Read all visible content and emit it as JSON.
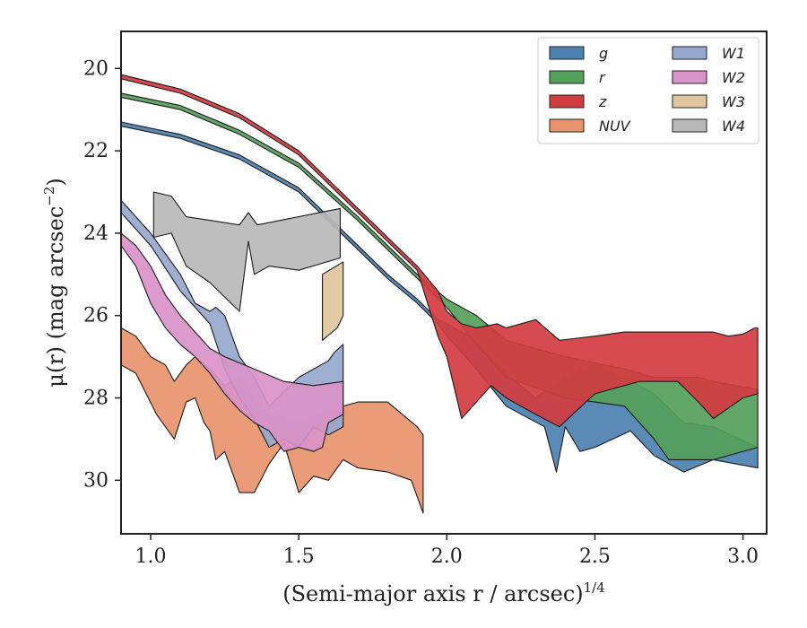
{
  "chart_data": {
    "type": "area",
    "xlabel": "(Semi-major axis r / arcsec)",
    "xlabel_sup": "1/4",
    "ylabel": "μ(r) (mag arcsec",
    "ylabel_sup": "−2",
    "ylabel_tail": ")",
    "xlim": [
      0.9,
      3.08
    ],
    "ylim": [
      31.3,
      19.1
    ],
    "xticks": [
      1.0,
      1.5,
      2.0,
      2.5,
      3.0
    ],
    "xtick_labels": [
      "1.0",
      "1.5",
      "2.0",
      "2.5",
      "3.0"
    ],
    "yticks": [
      20,
      22,
      24,
      26,
      28,
      30
    ],
    "ytick_labels": [
      "20",
      "22",
      "24",
      "26",
      "28",
      "30"
    ],
    "grid": false,
    "legend_position": "top-right",
    "series": [
      {
        "name": "g",
        "color": "#4c81b0",
        "upper": [
          [
            0.9,
            21.3
          ],
          [
            1.1,
            21.6
          ],
          [
            1.3,
            22.1
          ],
          [
            1.5,
            22.9
          ],
          [
            1.7,
            24.3
          ],
          [
            1.8,
            25.0
          ],
          [
            1.9,
            25.6
          ],
          [
            1.97,
            26.1
          ],
          [
            2.0,
            26.2
          ],
          [
            2.05,
            26.4
          ],
          [
            2.1,
            26.6
          ],
          [
            2.2,
            27.4
          ],
          [
            2.3,
            28.0
          ],
          [
            2.4,
            27.5
          ],
          [
            2.5,
            27.2
          ],
          [
            2.6,
            27.5
          ],
          [
            2.7,
            27.9
          ],
          [
            2.8,
            28.6
          ],
          [
            2.9,
            28.7
          ],
          [
            3.05,
            29.2
          ]
        ],
        "lower": [
          [
            3.05,
            29.7
          ],
          [
            2.9,
            29.5
          ],
          [
            2.8,
            29.8
          ],
          [
            2.7,
            29.4
          ],
          [
            2.62,
            28.8
          ],
          [
            2.5,
            29.2
          ],
          [
            2.45,
            29.3
          ],
          [
            2.4,
            28.7
          ],
          [
            2.37,
            29.8
          ],
          [
            2.33,
            28.7
          ],
          [
            2.2,
            28.2
          ],
          [
            2.1,
            27.3
          ],
          [
            2.05,
            26.9
          ],
          [
            2.0,
            26.5
          ],
          [
            1.97,
            26.2
          ],
          [
            1.9,
            25.7
          ],
          [
            1.8,
            25.1
          ],
          [
            1.7,
            24.4
          ],
          [
            1.5,
            23.0
          ],
          [
            1.3,
            22.2
          ],
          [
            1.1,
            21.7
          ],
          [
            0.9,
            21.4
          ]
        ]
      },
      {
        "name": "r",
        "color": "#55a05a",
        "upper": [
          [
            0.9,
            20.6
          ],
          [
            1.1,
            20.9
          ],
          [
            1.3,
            21.5
          ],
          [
            1.5,
            22.3
          ],
          [
            1.7,
            23.6
          ],
          [
            1.8,
            24.3
          ],
          [
            1.9,
            25.0
          ],
          [
            2.0,
            25.6
          ],
          [
            2.1,
            26.0
          ],
          [
            2.2,
            26.6
          ],
          [
            2.4,
            27.0
          ],
          [
            2.6,
            27.3
          ],
          [
            2.7,
            27.5
          ],
          [
            2.85,
            27.5
          ],
          [
            2.9,
            27.6
          ],
          [
            3.05,
            27.8
          ]
        ],
        "lower": [
          [
            3.05,
            29.2
          ],
          [
            2.9,
            29.5
          ],
          [
            2.75,
            29.5
          ],
          [
            2.7,
            29.0
          ],
          [
            2.6,
            28.2
          ],
          [
            2.4,
            28.0
          ],
          [
            2.2,
            27.5
          ],
          [
            2.1,
            26.7
          ],
          [
            2.0,
            25.8
          ],
          [
            1.9,
            25.1
          ],
          [
            1.8,
            24.4
          ],
          [
            1.7,
            23.7
          ],
          [
            1.5,
            22.4
          ],
          [
            1.3,
            21.6
          ],
          [
            1.1,
            21.0
          ],
          [
            0.9,
            20.7
          ]
        ]
      },
      {
        "name": "z",
        "color": "#d13c40",
        "upper": [
          [
            0.9,
            20.15
          ],
          [
            1.1,
            20.5
          ],
          [
            1.3,
            21.1
          ],
          [
            1.5,
            22.0
          ],
          [
            1.7,
            23.4
          ],
          [
            1.8,
            24.1
          ],
          [
            1.9,
            24.8
          ],
          [
            1.97,
            25.4
          ],
          [
            2.0,
            25.9
          ],
          [
            2.05,
            26.2
          ],
          [
            2.1,
            26.3
          ],
          [
            2.17,
            26.2
          ],
          [
            2.2,
            26.3
          ],
          [
            2.3,
            26.1
          ],
          [
            2.38,
            26.6
          ],
          [
            2.5,
            26.5
          ],
          [
            2.6,
            26.4
          ],
          [
            2.9,
            26.4
          ],
          [
            2.95,
            26.5
          ],
          [
            3.0,
            26.45
          ],
          [
            3.04,
            26.3
          ],
          [
            3.05,
            26.3
          ]
        ],
        "lower": [
          [
            3.05,
            27.9
          ],
          [
            3.0,
            28.0
          ],
          [
            2.9,
            28.5
          ],
          [
            2.85,
            28.1
          ],
          [
            2.78,
            27.6
          ],
          [
            2.65,
            27.6
          ],
          [
            2.5,
            27.9
          ],
          [
            2.38,
            28.7
          ],
          [
            2.3,
            28.4
          ],
          [
            2.2,
            28.0
          ],
          [
            2.15,
            27.7
          ],
          [
            2.05,
            28.5
          ],
          [
            2.0,
            27.0
          ],
          [
            1.97,
            26.5
          ],
          [
            1.9,
            24.9
          ],
          [
            1.8,
            24.2
          ],
          [
            1.7,
            23.5
          ],
          [
            1.5,
            22.1
          ],
          [
            1.3,
            21.2
          ],
          [
            1.1,
            20.6
          ],
          [
            0.9,
            20.25
          ]
        ]
      },
      {
        "name": "NUV",
        "color": "#e8936c",
        "upper": [
          [
            0.9,
            26.3
          ],
          [
            0.95,
            26.5
          ],
          [
            1.0,
            27.0
          ],
          [
            1.05,
            27.2
          ],
          [
            1.08,
            27.6
          ],
          [
            1.12,
            27.2
          ],
          [
            1.15,
            27.0
          ],
          [
            1.2,
            27.3
          ],
          [
            1.25,
            27.7
          ],
          [
            1.3,
            27.5
          ],
          [
            1.35,
            28.0
          ],
          [
            1.4,
            28.4
          ],
          [
            1.5,
            28.6
          ],
          [
            1.6,
            28.3
          ],
          [
            1.7,
            28.1
          ],
          [
            1.8,
            28.1
          ],
          [
            1.9,
            28.7
          ],
          [
            1.92,
            28.9
          ]
        ],
        "lower": [
          [
            1.92,
            30.8
          ],
          [
            1.88,
            30.0
          ],
          [
            1.8,
            29.8
          ],
          [
            1.7,
            29.7
          ],
          [
            1.65,
            29.5
          ],
          [
            1.6,
            30.0
          ],
          [
            1.55,
            29.9
          ],
          [
            1.5,
            30.3
          ],
          [
            1.45,
            29.1
          ],
          [
            1.4,
            29.6
          ],
          [
            1.35,
            30.3
          ],
          [
            1.3,
            30.3
          ],
          [
            1.25,
            29.3
          ],
          [
            1.22,
            29.5
          ],
          [
            1.2,
            28.8
          ],
          [
            1.18,
            28.6
          ],
          [
            1.15,
            28.0
          ],
          [
            1.12,
            28.1
          ],
          [
            1.08,
            29.0
          ],
          [
            1.02,
            28.4
          ],
          [
            0.95,
            27.4
          ],
          [
            0.9,
            27.2
          ]
        ]
      },
      {
        "name": "W1",
        "color": "#96a8cd",
        "upper": [
          [
            0.9,
            23.2
          ],
          [
            1.0,
            24.0
          ],
          [
            1.1,
            25.0
          ],
          [
            1.15,
            25.7
          ],
          [
            1.2,
            25.9
          ],
          [
            1.22,
            25.8
          ],
          [
            1.25,
            26.0
          ],
          [
            1.3,
            27.0
          ],
          [
            1.35,
            27.5
          ],
          [
            1.4,
            28.2
          ],
          [
            1.5,
            27.5
          ],
          [
            1.6,
            27.1
          ],
          [
            1.62,
            26.9
          ],
          [
            1.65,
            26.7
          ]
        ],
        "lower": [
          [
            1.65,
            28.7
          ],
          [
            1.6,
            28.9
          ],
          [
            1.55,
            28.7
          ],
          [
            1.5,
            29.2
          ],
          [
            1.45,
            29.0
          ],
          [
            1.4,
            29.2
          ],
          [
            1.35,
            28.5
          ],
          [
            1.3,
            28.0
          ],
          [
            1.25,
            27.3
          ],
          [
            1.2,
            26.2
          ],
          [
            1.1,
            25.4
          ],
          [
            1.0,
            24.3
          ],
          [
            0.9,
            23.5
          ]
        ]
      },
      {
        "name": "W2",
        "color": "#d993c8",
        "upper": [
          [
            0.9,
            24.0
          ],
          [
            0.95,
            24.3
          ],
          [
            1.0,
            24.8
          ],
          [
            1.05,
            25.5
          ],
          [
            1.1,
            26.0
          ],
          [
            1.15,
            26.4
          ],
          [
            1.2,
            26.8
          ],
          [
            1.25,
            27.0
          ],
          [
            1.35,
            27.3
          ],
          [
            1.45,
            27.6
          ],
          [
            1.55,
            27.7
          ],
          [
            1.65,
            27.6
          ]
        ],
        "lower": [
          [
            1.65,
            28.4
          ],
          [
            1.6,
            28.6
          ],
          [
            1.58,
            29.2
          ],
          [
            1.55,
            29.3
          ],
          [
            1.5,
            29.2
          ],
          [
            1.45,
            29.3
          ],
          [
            1.4,
            28.8
          ],
          [
            1.35,
            28.6
          ],
          [
            1.3,
            28.3
          ],
          [
            1.25,
            27.9
          ],
          [
            1.2,
            27.4
          ],
          [
            1.15,
            27.0
          ],
          [
            1.1,
            26.7
          ],
          [
            1.05,
            26.3
          ],
          [
            1.0,
            25.7
          ],
          [
            0.95,
            24.8
          ],
          [
            0.9,
            24.3
          ]
        ]
      },
      {
        "name": "W3",
        "color": "#e0c6a0",
        "upper": [
          [
            1.58,
            25.0
          ],
          [
            1.65,
            24.7
          ]
        ],
        "lower": [
          [
            1.65,
            26.0
          ],
          [
            1.63,
            26.3
          ],
          [
            1.58,
            26.6
          ]
        ]
      },
      {
        "name": "W4",
        "color": "#b8b8b8",
        "upper": [
          [
            1.01,
            23.0
          ],
          [
            1.07,
            23.1
          ],
          [
            1.12,
            23.6
          ],
          [
            1.3,
            23.8
          ],
          [
            1.33,
            23.5
          ],
          [
            1.36,
            23.8
          ],
          [
            1.5,
            23.6
          ],
          [
            1.64,
            23.4
          ]
        ],
        "lower": [
          [
            1.64,
            24.6
          ],
          [
            1.5,
            24.9
          ],
          [
            1.4,
            24.8
          ],
          [
            1.35,
            25.0
          ],
          [
            1.33,
            24.2
          ],
          [
            1.3,
            25.9
          ],
          [
            1.2,
            25.2
          ],
          [
            1.12,
            24.8
          ],
          [
            1.07,
            24.0
          ],
          [
            1.01,
            24.1
          ]
        ]
      }
    ]
  }
}
